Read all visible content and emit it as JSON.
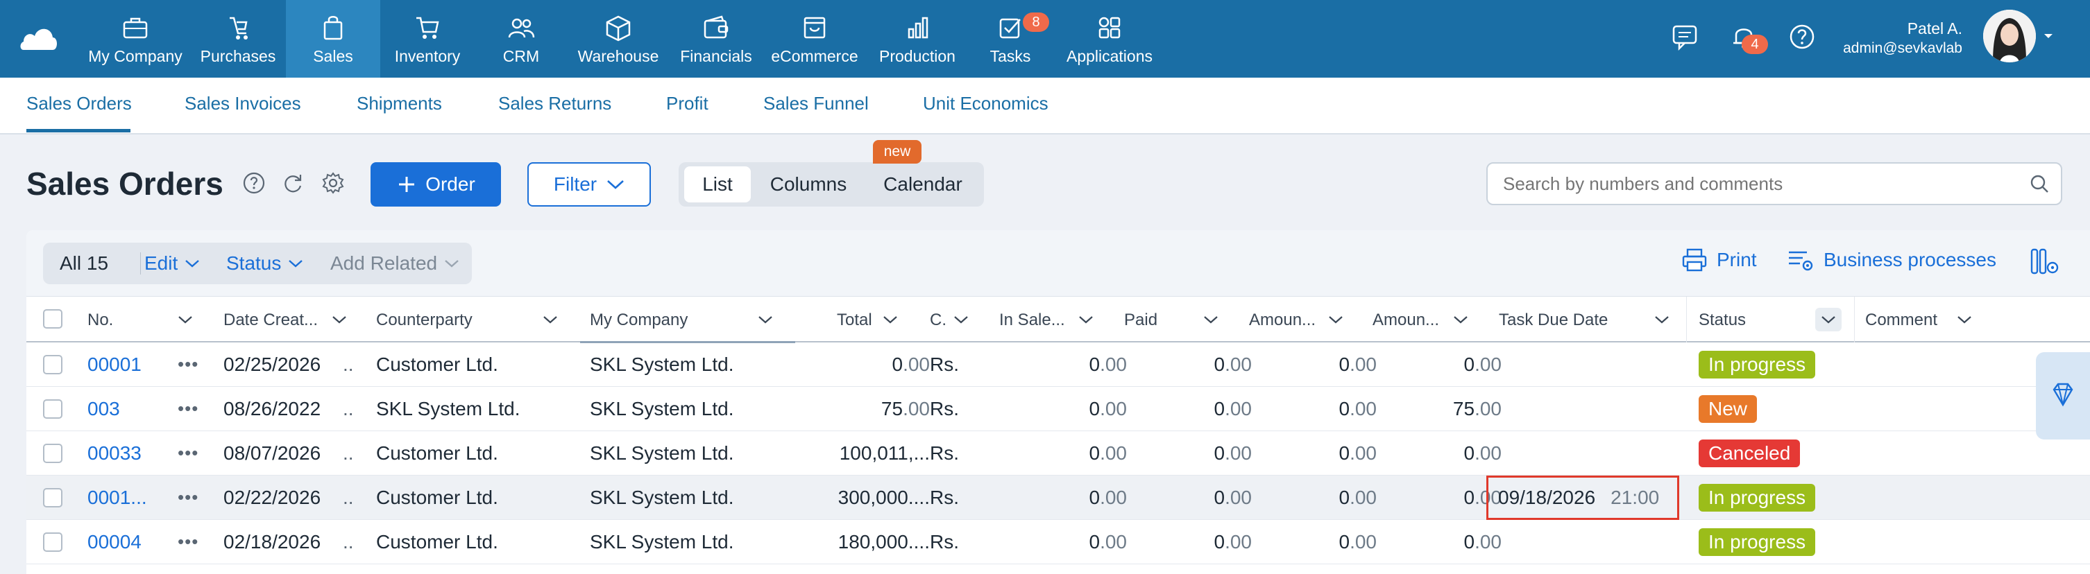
{
  "nav": {
    "items": [
      {
        "key": "my-company",
        "label": "My Company",
        "icon": "briefcase-icon"
      },
      {
        "key": "purchases",
        "label": "Purchases",
        "icon": "purchases-icon"
      },
      {
        "key": "sales",
        "label": "Sales",
        "icon": "shopping-bag-icon",
        "active": true
      },
      {
        "key": "inventory",
        "label": "Inventory",
        "icon": "cart-icon"
      },
      {
        "key": "crm",
        "label": "CRM",
        "icon": "people-icon"
      },
      {
        "key": "warehouse",
        "label": "Warehouse",
        "icon": "box-icon"
      },
      {
        "key": "financials",
        "label": "Financials",
        "icon": "wallet-icon"
      },
      {
        "key": "ecommerce",
        "label": "eCommerce",
        "icon": "storefront-icon"
      },
      {
        "key": "production",
        "label": "Production",
        "icon": "factory-icon"
      },
      {
        "key": "tasks",
        "label": "Tasks",
        "icon": "checkbox-icon",
        "badge": "8"
      },
      {
        "key": "applications",
        "label": "Applications",
        "icon": "apps-grid-icon"
      }
    ],
    "notifications_badge": "4"
  },
  "user": {
    "name": "Patel A.",
    "email": "admin@sevkavlab"
  },
  "subtabs": [
    "Sales Orders",
    "Sales Invoices",
    "Shipments",
    "Sales Returns",
    "Profit",
    "Sales Funnel",
    "Unit Economics"
  ],
  "toolbar": {
    "title": "Sales Orders",
    "order_label": "Order",
    "filter_label": "Filter",
    "views": [
      "List",
      "Columns",
      "Calendar"
    ],
    "selected_view": "List",
    "new_badge": "new",
    "search_placeholder": "Search by numbers and comments"
  },
  "bulk": {
    "all_label": "All 15",
    "edit_label": "Edit",
    "status_label": "Status",
    "add_related_label": "Add Related",
    "print_label": "Print",
    "business_label": "Business processes"
  },
  "columns": [
    "No.",
    "Date Creat...",
    "Counterparty",
    "My Company",
    "Total",
    "C.",
    "In Sale...",
    "Paid",
    "Amoun...",
    "Amoun...",
    "Task Due Date",
    "Status",
    "Comment"
  ],
  "rows": [
    {
      "no": "00001",
      "date": "02/25/2026",
      "dots2": "..",
      "counterparty": "Customer Ltd.",
      "company": "SKL System Ltd.",
      "total_int": "0",
      "total_dec": ".00",
      "currency": "Rs.",
      "insale_int": "0",
      "insale_dec": ".00",
      "paid_int": "0",
      "paid_dec": ".00",
      "amt1_int": "0",
      "amt1_dec": ".00",
      "amt2_int": "0",
      "amt2_dec": ".00",
      "due_date": "",
      "due_time": "",
      "status": "In progress"
    },
    {
      "no": "003",
      "date": "08/26/2022",
      "dots2": "..",
      "counterparty": "SKL System Ltd.",
      "company": "SKL System Ltd.",
      "total_int": "75",
      "total_dec": ".00",
      "currency": "Rs.",
      "insale_int": "0",
      "insale_dec": ".00",
      "paid_int": "0",
      "paid_dec": ".00",
      "amt1_int": "0",
      "amt1_dec": ".00",
      "amt2_int": "75",
      "amt2_dec": ".00",
      "due_date": "",
      "due_time": "",
      "status": "New"
    },
    {
      "no": "00033",
      "date": "08/07/2026",
      "dots2": "..",
      "counterparty": "Customer Ltd.",
      "company": "SKL System Ltd.",
      "total_int": "100,011,...",
      "total_dec": "",
      "currency": "Rs.",
      "insale_int": "0",
      "insale_dec": ".00",
      "paid_int": "0",
      "paid_dec": ".00",
      "amt1_int": "0",
      "amt1_dec": ".00",
      "amt2_int": "0",
      "amt2_dec": ".00",
      "due_date": "",
      "due_time": "",
      "status": "Canceled"
    },
    {
      "no": "0001...",
      "date": "02/22/2026",
      "dots2": "..",
      "counterparty": "Customer Ltd.",
      "company": "SKL System Ltd.",
      "total_int": "300,000....",
      "total_dec": "",
      "currency": "Rs.",
      "insale_int": "0",
      "insale_dec": ".00",
      "paid_int": "0",
      "paid_dec": ".00",
      "amt1_int": "0",
      "amt1_dec": ".00",
      "amt2_int": "0",
      "amt2_dec": ".00",
      "due_date": "09/18/2026",
      "due_time": "21:00",
      "status": "In progress"
    },
    {
      "no": "00004",
      "date": "02/18/2026",
      "dots2": "..",
      "counterparty": "Customer Ltd.",
      "company": "SKL System Ltd.",
      "total_int": "180,000....",
      "total_dec": "",
      "currency": "Rs.",
      "insale_int": "0",
      "insale_dec": ".00",
      "paid_int": "0",
      "paid_dec": ".00",
      "amt1_int": "0",
      "amt1_dec": ".00",
      "amt2_int": "0",
      "amt2_dec": ".00",
      "due_date": "",
      "due_time": "",
      "status": "In progress"
    }
  ],
  "colors": {
    "nav_bg": "#1a6ea5",
    "accent": "#1a6fd8",
    "status_in_progress": "#9bbd1a",
    "status_new": "#e8792a",
    "status_canceled": "#e53935",
    "highlight_border": "#e0392b"
  }
}
